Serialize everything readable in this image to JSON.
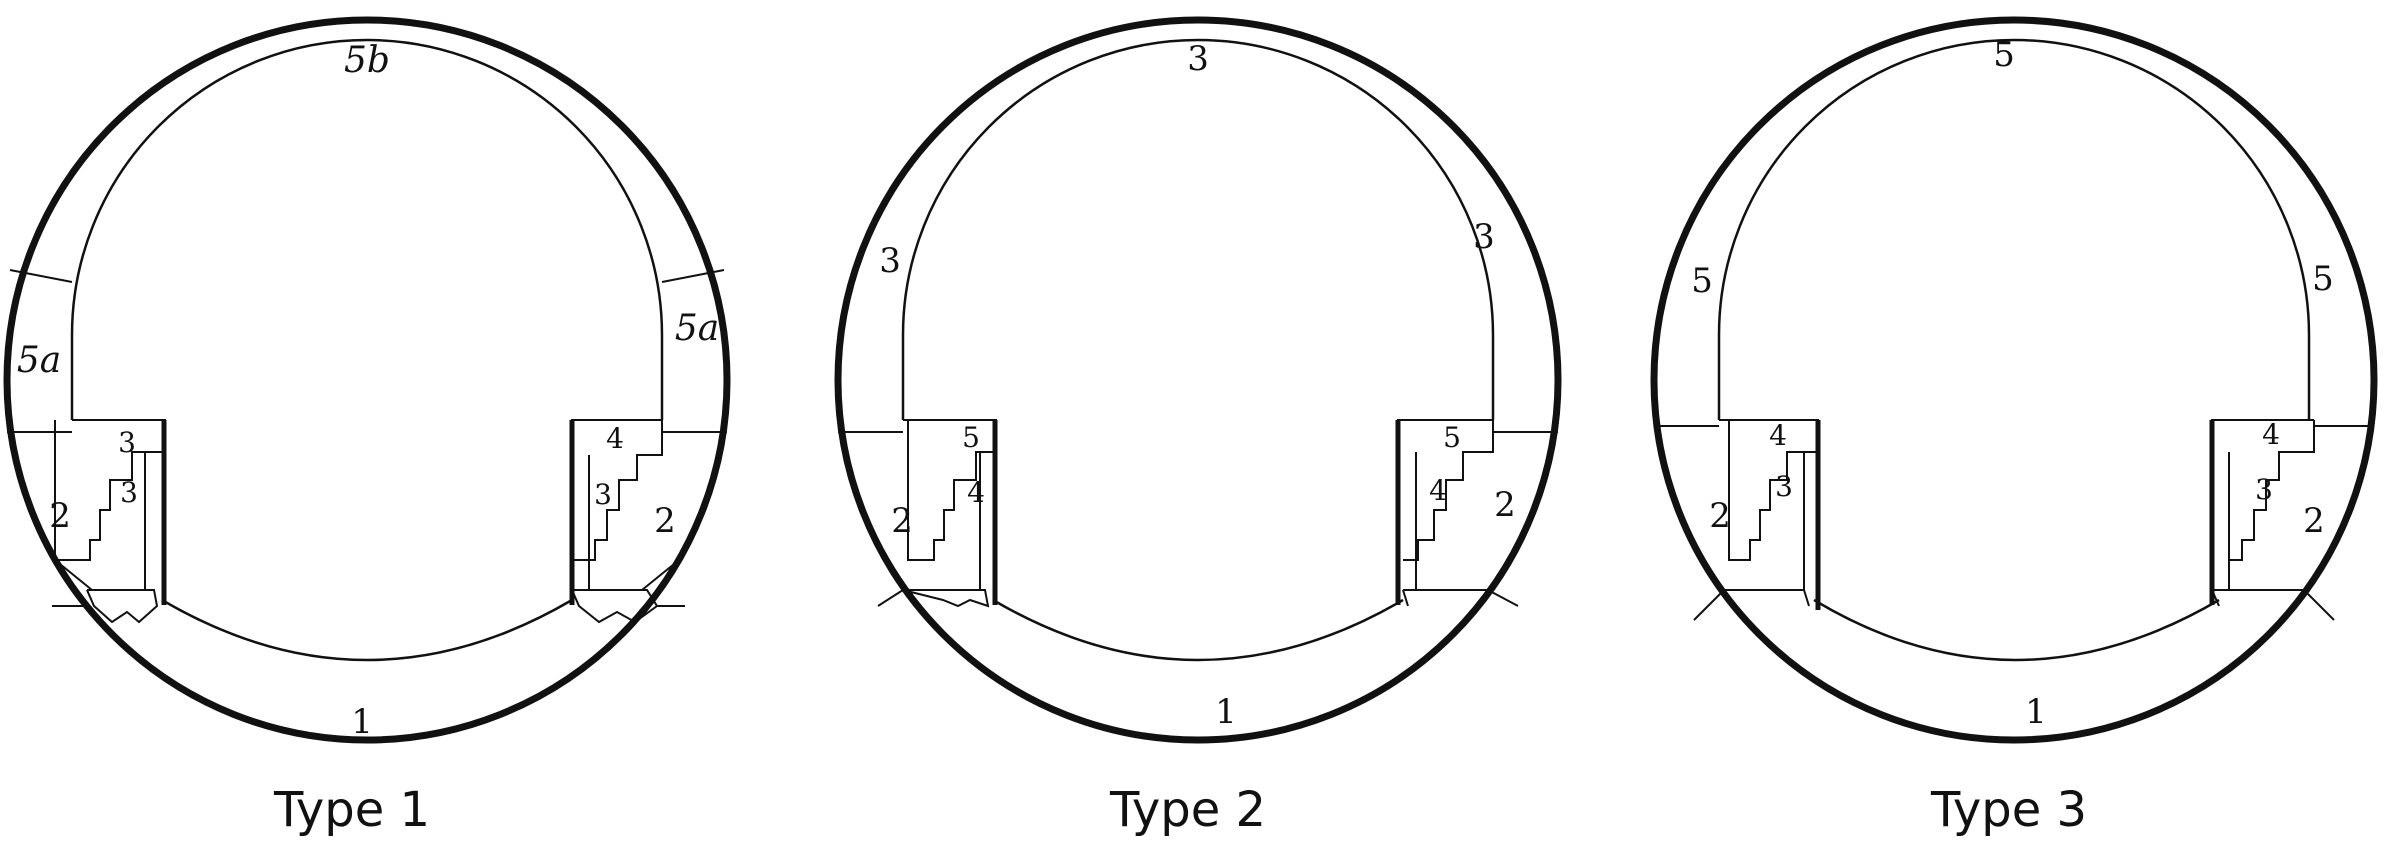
{
  "diagrams": [
    {
      "caption": "Type 1",
      "labels": {
        "top": "5b",
        "side_left": "5a",
        "side_right": "5a",
        "step_top_left": "3",
        "step_top_right": "4",
        "step_inner_left": "3",
        "step_inner_right": "3",
        "lower_left": "2",
        "lower_right": "2",
        "bottom": "1"
      }
    },
    {
      "caption": "Type 2",
      "labels": {
        "top": "3",
        "side_left": "3",
        "side_right": "3",
        "step_top_left": "5",
        "step_top_right": "5",
        "step_inner_left": "4",
        "step_inner_right": "4",
        "lower_left": "2",
        "lower_right": "2",
        "bottom": "1"
      }
    },
    {
      "caption": "Type 3",
      "labels": {
        "top": "5",
        "side_left": "5",
        "side_right": "5",
        "step_top_left": "4",
        "step_top_right": "4",
        "step_inner_left": "3",
        "step_inner_right": "3",
        "lower_left": "2",
        "lower_right": "2",
        "bottom": "1"
      }
    }
  ]
}
